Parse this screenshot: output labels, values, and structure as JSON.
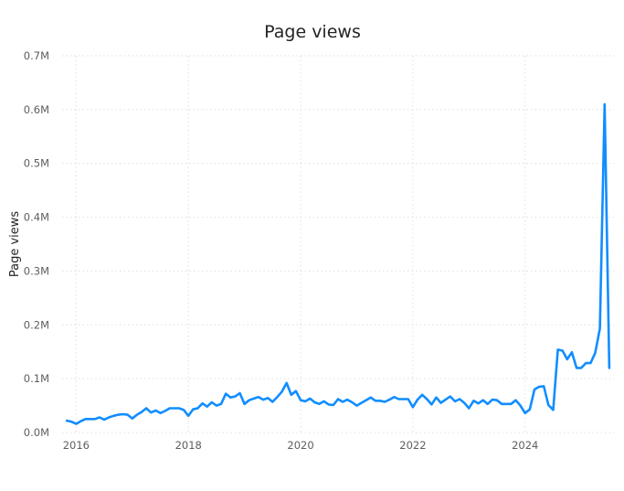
{
  "chart_data": {
    "type": "line",
    "title": "Page views",
    "xlabel": "",
    "ylabel": "Page views",
    "xlim": [
      "2015-10",
      "2025-08"
    ],
    "ylim": [
      0,
      700000
    ],
    "grid": true,
    "legend": "none",
    "x_ticks": [
      {
        "label": "2016",
        "value": "2016-01"
      },
      {
        "label": "2018",
        "value": "2018-01"
      },
      {
        "label": "2020",
        "value": "2020-01"
      },
      {
        "label": "2022",
        "value": "2022-01"
      },
      {
        "label": "2024",
        "value": "2024-01"
      }
    ],
    "y_ticks": [
      {
        "label": "0.0M",
        "value": 0
      },
      {
        "label": "0.1M",
        "value": 100000
      },
      {
        "label": "0.2M",
        "value": 200000
      },
      {
        "label": "0.3M",
        "value": 300000
      },
      {
        "label": "0.4M",
        "value": 400000
      },
      {
        "label": "0.5M",
        "value": 500000
      },
      {
        "label": "0.6M",
        "value": 600000
      },
      {
        "label": "0.7M",
        "value": 700000
      }
    ],
    "series": [
      {
        "color": "#118dff",
        "x": [
          "2015-11",
          "2015-12",
          "2016-01",
          "2016-02",
          "2016-03",
          "2016-04",
          "2016-05",
          "2016-06",
          "2016-07",
          "2016-08",
          "2016-09",
          "2016-10",
          "2016-11",
          "2016-12",
          "2017-01",
          "2017-02",
          "2017-03",
          "2017-04",
          "2017-05",
          "2017-06",
          "2017-07",
          "2017-08",
          "2017-09",
          "2017-10",
          "2017-11",
          "2017-12",
          "2018-01",
          "2018-02",
          "2018-03",
          "2018-04",
          "2018-05",
          "2018-06",
          "2018-07",
          "2018-08",
          "2018-09",
          "2018-10",
          "2018-11",
          "2018-12",
          "2019-01",
          "2019-02",
          "2019-03",
          "2019-04",
          "2019-05",
          "2019-06",
          "2019-07",
          "2019-08",
          "2019-09",
          "2019-10",
          "2019-11",
          "2019-12",
          "2020-01",
          "2020-02",
          "2020-03",
          "2020-04",
          "2020-05",
          "2020-06",
          "2020-07",
          "2020-08",
          "2020-09",
          "2020-10",
          "2020-11",
          "2020-12",
          "2021-01",
          "2021-02",
          "2021-03",
          "2021-04",
          "2021-05",
          "2021-06",
          "2021-07",
          "2021-08",
          "2021-09",
          "2021-10",
          "2021-11",
          "2021-12",
          "2022-01",
          "2022-02",
          "2022-03",
          "2022-04",
          "2022-05",
          "2022-06",
          "2022-07",
          "2022-08",
          "2022-09",
          "2022-10",
          "2022-11",
          "2022-12",
          "2023-01",
          "2023-02",
          "2023-03",
          "2023-04",
          "2023-05",
          "2023-06",
          "2023-07",
          "2023-08",
          "2023-09",
          "2023-10",
          "2023-11",
          "2023-12",
          "2024-01",
          "2024-02",
          "2024-03",
          "2024-04",
          "2024-05",
          "2024-06",
          "2024-07",
          "2024-08",
          "2024-09",
          "2024-10",
          "2024-11",
          "2024-12",
          "2025-01",
          "2025-02",
          "2025-03",
          "2025-04",
          "2025-05",
          "2025-06",
          "2025-07"
        ],
        "values": [
          22000,
          20000,
          16000,
          21000,
          25000,
          25000,
          25000,
          28000,
          24000,
          28000,
          31000,
          33000,
          34000,
          33000,
          26000,
          33000,
          38000,
          45000,
          37000,
          41000,
          36000,
          40000,
          45000,
          45000,
          45000,
          42000,
          31000,
          43000,
          45000,
          54000,
          48000,
          56000,
          50000,
          53000,
          72000,
          65000,
          67000,
          73000,
          53000,
          60000,
          63000,
          66000,
          61000,
          64000,
          57000,
          66000,
          76000,
          92000,
          70000,
          77000,
          60000,
          58000,
          63000,
          56000,
          53000,
          58000,
          52000,
          51000,
          62000,
          57000,
          61000,
          56000,
          50000,
          55000,
          60000,
          65000,
          59000,
          59000,
          57000,
          61000,
          66000,
          62000,
          62000,
          62000,
          47000,
          61000,
          70000,
          62000,
          52000,
          65000,
          55000,
          61000,
          67000,
          58000,
          62000,
          55000,
          45000,
          59000,
          54000,
          60000,
          53000,
          61000,
          60000,
          53000,
          53000,
          53000,
          60000,
          50000,
          36000,
          43000,
          80000,
          85000,
          86000,
          51000,
          42000,
          154000,
          152000,
          136000,
          149000,
          120000,
          120000,
          129000,
          129000,
          148000,
          193000,
          610000,
          120000
        ]
      }
    ]
  }
}
